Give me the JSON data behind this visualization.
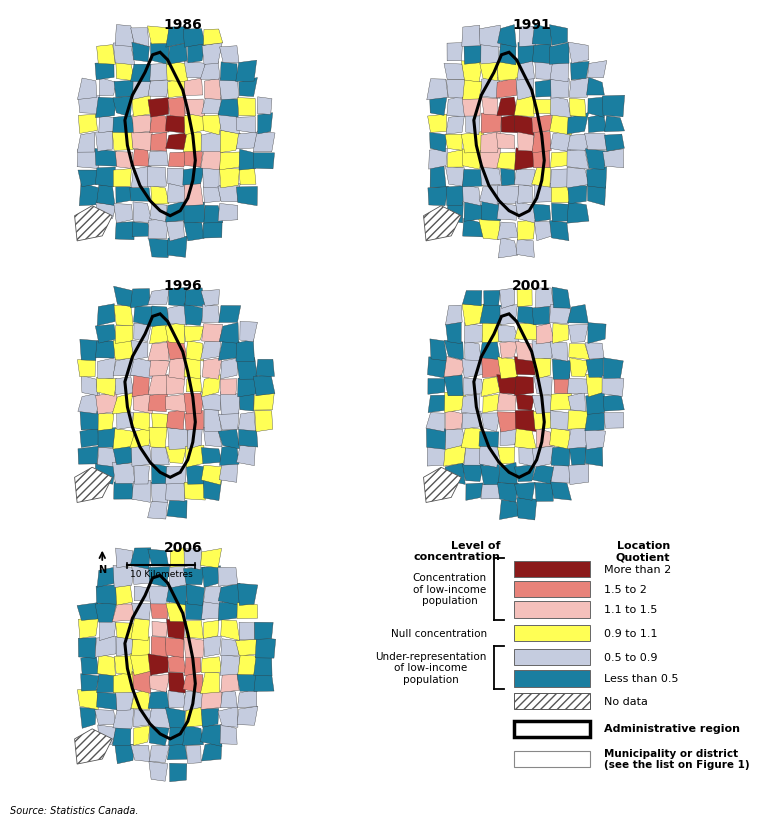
{
  "years": [
    "1986",
    "1991",
    "1996",
    "2001",
    "2006"
  ],
  "legend_colors": [
    "#8B1A1A",
    "#E8837A",
    "#F4C0BB",
    "#FFFF55",
    "#C5CCDF",
    "#1A7EA0"
  ],
  "legend_labels": [
    "More than 2",
    "1.5 to 2",
    "1.1 to 1.5",
    "0.9 to 1.1",
    "0.5 to 0.9",
    "Less than 0.5"
  ],
  "level_labels": [
    "Concentration\nof low-income\npopulation",
    "Null concentration",
    "Under-representation\nof low-income\npopulation"
  ],
  "source": "Source: Statistics Canada.",
  "scale_text": "10 Kilometres",
  "no_data_label": "No data",
  "admin_region_label": "Administrative region",
  "municipality_label": "Municipality or district\n(see the list on Figure 1)",
  "level_header": "Level of\nconcentration",
  "lq_header": "Location\nQuotient",
  "bg_color": "#FFFFFF",
  "teal_color": "#1A7EA0",
  "light_blue": "#C5CCDF",
  "pink_dark": "#8B1A1A",
  "pink_mid": "#E8837A",
  "pink_light": "#F4C0BB",
  "yellow": "#FFFF55",
  "white": "#FFFFFF"
}
